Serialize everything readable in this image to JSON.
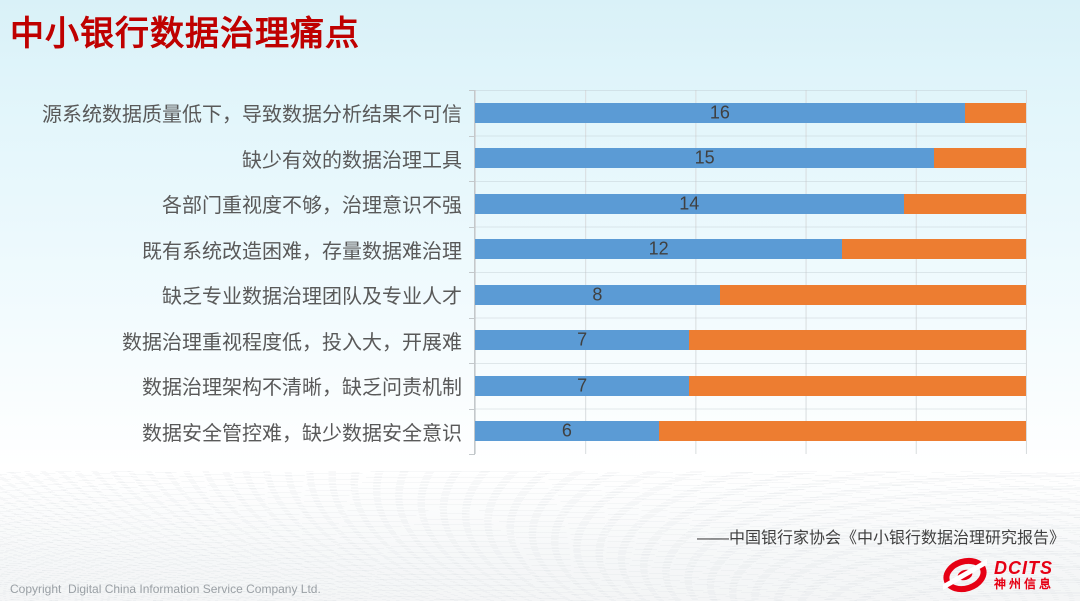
{
  "slide": {
    "title": "中小银行数据治理痛点",
    "source": "——中国银行家协会《中小银行数据治理研究报告》",
    "copyright": "Copyright  Digital China Information Service Company Ltd.",
    "logo": {
      "brand": "DCITS",
      "brand_cn": "神州信息",
      "icon": "swirl-logo-icon",
      "color": "#e60014"
    }
  },
  "chart_data": {
    "type": "bar",
    "orientation": "horizontal",
    "stacked": true,
    "title": "中小银行数据治理痛点",
    "categories": [
      "源系统数据质量低下，导致数据分析结果不可信",
      "缺少有效的数据治理工具",
      "各部门重视度不够，治理意识不强",
      "既有系统改造困难，存量数据难治理",
      "缺乏专业数据治理团队及专业人才",
      "数据治理重视程度低，投入大，开展难",
      "数据治理架构不清晰，缺乏问责机制",
      "数据安全管控难，缺少数据安全意识"
    ],
    "series": [
      {
        "name": "blue",
        "color": "#5b9bd5",
        "values": [
          16,
          15,
          14,
          12,
          8,
          7,
          7,
          6
        ]
      },
      {
        "name": "orange",
        "color": "#ed7d31",
        "values": [
          2,
          3,
          4,
          6,
          10,
          11,
          11,
          12
        ]
      }
    ],
    "data_labels": [
      16,
      15,
      14,
      12,
      8,
      7,
      7,
      6
    ],
    "total": 18,
    "xlim": [
      0,
      18
    ],
    "gridline_intervals": 5,
    "legend": "none",
    "xlabel": "",
    "ylabel": ""
  },
  "colors": {
    "title": "#bf0000",
    "bar_blue": "#5b9bd5",
    "bar_orange": "#ed7d31",
    "category_text": "#595959",
    "value_text": "#404040",
    "logo_red": "#e60014"
  }
}
